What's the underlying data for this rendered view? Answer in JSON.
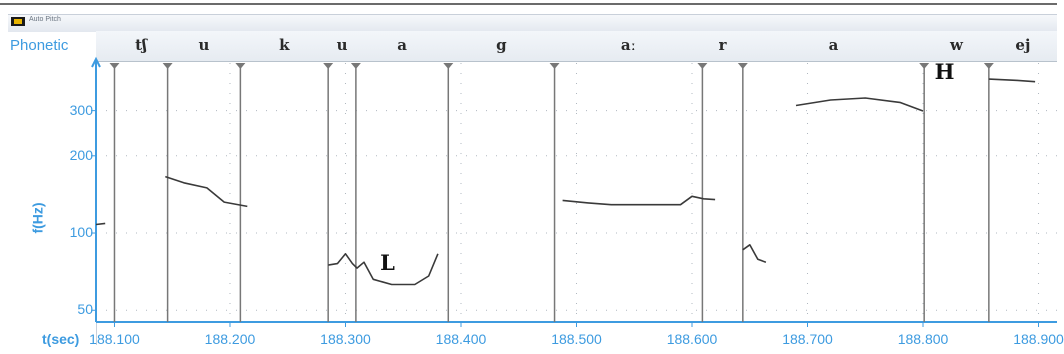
{
  "window": {
    "title": "Auto Pitch"
  },
  "tier": {
    "label": "Phonetic"
  },
  "phonetic_segments": [
    "tʃ",
    "u",
    "k",
    "u",
    "a",
    "g",
    "aː",
    "r",
    "a",
    "w",
    "ej"
  ],
  "colors": {
    "axis": "#3d9be0",
    "boundary": "#777777",
    "pitch": "#3a3a3a",
    "grid": "#b0b8c0"
  },
  "chart_data": {
    "type": "line",
    "xlabel": "t(sec)",
    "ylabel": "f(Hz)",
    "y_scale": "log",
    "ylim": [
      45,
      460
    ],
    "xlim": [
      188.084,
      188.916
    ],
    "x_ticks": [
      "188.100",
      "188.200",
      "188.300",
      "188.400",
      "188.500",
      "188.600",
      "188.700",
      "188.800",
      "188.900"
    ],
    "x_tick_values": [
      188.1,
      188.2,
      188.3,
      188.4,
      188.5,
      188.6,
      188.7,
      188.8,
      188.9
    ],
    "y_ticks": [
      "300",
      "200",
      "100",
      "50"
    ],
    "y_tick_values": [
      300,
      200,
      100,
      50
    ],
    "segment_boundaries": [
      188.1,
      188.146,
      188.209,
      188.285,
      188.309,
      188.389,
      188.481,
      188.609,
      188.644,
      188.801,
      188.857
    ],
    "pitch_contours": [
      {
        "x": [
          188.084,
          188.092
        ],
        "y": [
          108,
          109
        ]
      },
      {
        "x": [
          188.144,
          188.16,
          188.18,
          188.195,
          188.215
        ],
        "y": [
          166,
          157,
          150,
          132,
          127
        ]
      },
      {
        "x": [
          188.285,
          188.293,
          188.3,
          188.306,
          188.31,
          188.316,
          188.324,
          188.34,
          188.36,
          188.372,
          188.38
        ],
        "y": [
          75,
          76,
          83,
          76,
          73,
          77,
          66,
          63,
          63,
          68,
          83
        ]
      },
      {
        "x": [
          188.488,
          188.51,
          188.53,
          188.56,
          188.59,
          188.6,
          188.61,
          188.62
        ],
        "y": [
          134,
          131,
          129,
          129,
          129,
          139,
          136,
          135
        ]
      },
      {
        "x": [
          188.644,
          188.65,
          188.657,
          188.664
        ],
        "y": [
          86,
          90,
          79,
          77
        ]
      },
      {
        "x": [
          188.69,
          188.72,
          188.75,
          188.78,
          188.8
        ],
        "y": [
          314,
          330,
          336,
          323,
          299
        ]
      },
      {
        "x": [
          188.857,
          188.88,
          188.897
        ],
        "y": [
          398,
          394,
          389
        ]
      }
    ],
    "annotations": [
      {
        "text": "L",
        "x": 188.33,
        "y": 76
      },
      {
        "text": "H",
        "x": 188.81,
        "y": 420
      }
    ]
  }
}
